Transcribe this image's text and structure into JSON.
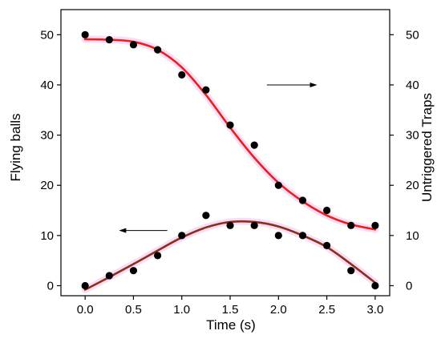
{
  "chart_data": {
    "type": "scatter",
    "title": "",
    "xlabel": "Time  (s)",
    "ylabel": "Flying balls",
    "ylabel_right": "Untriggered Traps",
    "xlim": [
      -0.25,
      3.15
    ],
    "ylim": [
      -2,
      55
    ],
    "ylim_right": [
      -2,
      55
    ],
    "x_ticks": [
      0.0,
      0.5,
      1.0,
      1.5,
      2.0,
      2.5,
      3.0
    ],
    "x_tick_labels": [
      "0.0",
      "0.5",
      "1.0",
      "1.5",
      "2.0",
      "2.5",
      "3.0"
    ],
    "y_ticks": [
      0,
      10,
      20,
      30,
      40,
      50
    ],
    "y_tick_labels": [
      "0",
      "10",
      "20",
      "30",
      "40",
      "50"
    ],
    "y_ticks_right": [
      0,
      10,
      20,
      30,
      40,
      50
    ],
    "y_tick_labels_right": [
      "0",
      "10",
      "20",
      "30",
      "40",
      "50"
    ],
    "grid": false,
    "legend": "none",
    "colors": {
      "points": "#000000",
      "fit_upper": "#e8211f",
      "fit_lower": "#8b2f1a",
      "fit_glow": "#f5c6f0",
      "axis": "#000000"
    },
    "series": [
      {
        "axis": "right",
        "x": [
          0.0,
          0.25,
          0.5,
          0.75,
          1.0,
          1.25,
          1.5,
          1.75,
          2.0,
          2.25,
          2.5,
          2.75,
          3.0
        ],
        "y": [
          50,
          49,
          48,
          47,
          42,
          39,
          32,
          28,
          20,
          17,
          15,
          12,
          12
        ]
      },
      {
        "axis": "left",
        "x": [
          0.0,
          0.25,
          0.5,
          0.75,
          1.0,
          1.25,
          1.5,
          1.75,
          2.0,
          2.25,
          2.5,
          2.75,
          3.0
        ],
        "y": [
          0,
          2,
          3,
          6,
          10,
          14,
          12,
          12,
          10,
          10,
          8,
          3,
          0
        ]
      }
    ],
    "fits": [
      {
        "axis": "right",
        "x": [
          0.0,
          0.25,
          0.5,
          0.75,
          1.0,
          1.25,
          1.5,
          1.75,
          2.0,
          2.25,
          2.5,
          2.75,
          3.0
        ],
        "y": [
          49.1,
          49.0,
          48.6,
          47.0,
          43.5,
          38.0,
          31.5,
          25.5,
          20.5,
          16.8,
          14.0,
          12.2,
          11.2
        ]
      },
      {
        "axis": "left",
        "x": [
          0.0,
          0.25,
          0.5,
          0.75,
          1.0,
          1.25,
          1.5,
          1.75,
          2.0,
          2.25,
          2.5,
          2.75,
          3.0
        ],
        "y": [
          -0.8,
          1.7,
          4.3,
          7.0,
          9.6,
          11.6,
          12.7,
          12.7,
          11.8,
          10.0,
          7.7,
          4.3,
          0.6
        ]
      }
    ],
    "annotations": [
      {
        "type": "arrow",
        "direction": "right",
        "x0": 1.88,
        "x1": 2.4,
        "y": 40,
        "axis": "right"
      },
      {
        "type": "arrow",
        "direction": "left",
        "x0": 0.85,
        "x1": 0.35,
        "y": 11,
        "axis": "left"
      }
    ]
  }
}
